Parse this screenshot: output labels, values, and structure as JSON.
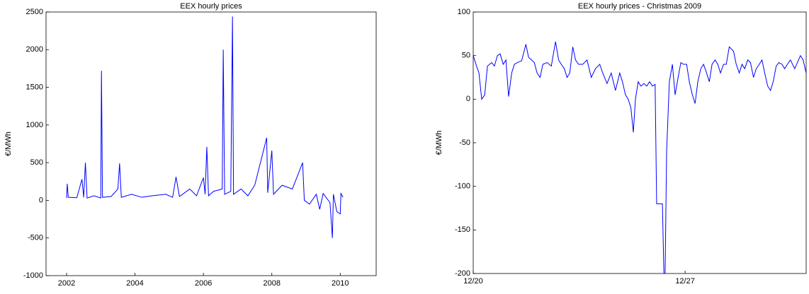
{
  "chart_data": [
    {
      "type": "line",
      "title": "EEX hourly prices",
      "y_label": "€/MWh",
      "xlim": [
        2001.4,
        2011.05
      ],
      "xticks": [
        2002,
        2004,
        2006,
        2008,
        2010
      ],
      "ylim": [
        -1000,
        2500
      ],
      "yticks": [
        -1000,
        -500,
        0,
        500,
        1000,
        1500,
        2000,
        2500
      ],
      "series": [
        {
          "color": "#0000ff",
          "x": [
            2002.0,
            2002.02,
            2002.05,
            2002.3,
            2002.45,
            2002.5,
            2002.55,
            2002.6,
            2002.8,
            2003.0,
            2003.02,
            2003.05,
            2003.3,
            2003.5,
            2003.55,
            2003.6,
            2003.9,
            2004.2,
            2004.5,
            2004.9,
            2005.1,
            2005.2,
            2005.3,
            2005.6,
            2005.8,
            2006.0,
            2006.05,
            2006.1,
            2006.15,
            2006.3,
            2006.55,
            2006.58,
            2006.62,
            2006.8,
            2006.85,
            2006.88,
            2007.1,
            2007.3,
            2007.5,
            2007.85,
            2007.88,
            2008.0,
            2008.05,
            2008.3,
            2008.6,
            2008.9,
            2008.95,
            2009.1,
            2009.3,
            2009.4,
            2009.5,
            2009.7,
            2009.77,
            2009.8,
            2009.9,
            2010.0,
            2010.02,
            2010.08
          ],
          "values": [
            30,
            220,
            40,
            35,
            280,
            40,
            500,
            30,
            60,
            30,
            1720,
            40,
            50,
            150,
            490,
            40,
            80,
            40,
            60,
            80,
            40,
            310,
            50,
            150,
            60,
            300,
            80,
            710,
            60,
            120,
            150,
            2000,
            80,
            120,
            2440,
            80,
            150,
            60,
            200,
            830,
            100,
            660,
            80,
            200,
            150,
            500,
            0,
            -50,
            80,
            -120,
            90,
            -30,
            -500,
            80,
            -150,
            -180,
            90,
            40
          ]
        }
      ]
    },
    {
      "type": "line",
      "title": "EEX hourly prices - Christmas 2009",
      "y_label": "€/MWh",
      "xlim": [
        20,
        31
      ],
      "xticks": [
        {
          "value": 20,
          "label": "12/20"
        },
        {
          "value": 27,
          "label": "12/27"
        }
      ],
      "ylim": [
        -200,
        100
      ],
      "yticks": [
        -200,
        -150,
        -100,
        -50,
        0,
        50,
        100
      ],
      "series": [
        {
          "color": "#0000ff",
          "x": [
            20.0,
            20.09,
            20.19,
            20.28,
            20.38,
            20.47,
            20.61,
            20.7,
            20.8,
            20.89,
            20.99,
            21.08,
            21.17,
            21.27,
            21.36,
            21.46,
            21.6,
            21.74,
            21.83,
            21.93,
            22.02,
            22.11,
            22.21,
            22.3,
            22.44,
            22.58,
            22.72,
            22.82,
            22.91,
            23.01,
            23.1,
            23.19,
            23.29,
            23.38,
            23.48,
            23.62,
            23.76,
            23.9,
            24.04,
            24.18,
            24.28,
            24.42,
            24.56,
            24.7,
            24.84,
            24.93,
            25.03,
            25.12,
            25.21,
            25.29,
            25.36,
            25.45,
            25.54,
            25.64,
            25.73,
            25.83,
            25.92,
            26.01,
            26.06,
            26.15,
            26.25,
            26.3,
            26.34,
            26.39,
            26.48,
            26.58,
            26.67,
            26.77,
            26.86,
            26.95,
            27.05,
            27.14,
            27.24,
            27.33,
            27.42,
            27.52,
            27.61,
            27.71,
            27.8,
            27.89,
            27.99,
            28.08,
            28.17,
            28.27,
            28.36,
            28.46,
            28.6,
            28.69,
            28.79,
            28.88,
            28.97,
            29.07,
            29.16,
            29.26,
            29.35,
            29.45,
            29.54,
            29.63,
            29.73,
            29.82,
            29.91,
            30.01,
            30.1,
            30.2,
            30.29,
            30.38,
            30.48,
            30.62,
            30.71,
            30.81,
            30.9,
            31.0
          ],
          "values": [
            50,
            40,
            30,
            0,
            5,
            38,
            42,
            38,
            50,
            52,
            40,
            45,
            3,
            30,
            40,
            42,
            44,
            63,
            48,
            45,
            42,
            30,
            25,
            40,
            42,
            38,
            66,
            45,
            40,
            35,
            25,
            30,
            60,
            45,
            40,
            40,
            45,
            25,
            35,
            40,
            30,
            18,
            30,
            10,
            30,
            20,
            5,
            0,
            -10,
            -38,
            0,
            20,
            15,
            18,
            15,
            20,
            15,
            17,
            -120,
            -120,
            -120,
            -200,
            -200,
            -60,
            20,
            40,
            5,
            25,
            42,
            40,
            40,
            20,
            5,
            -5,
            20,
            35,
            40,
            30,
            20,
            40,
            45,
            40,
            30,
            40,
            40,
            60,
            55,
            40,
            30,
            40,
            35,
            45,
            42,
            25,
            35,
            40,
            45,
            30,
            15,
            10,
            20,
            38,
            42,
            40,
            35,
            40,
            45,
            35,
            42,
            50,
            45,
            30
          ]
        }
      ]
    }
  ]
}
